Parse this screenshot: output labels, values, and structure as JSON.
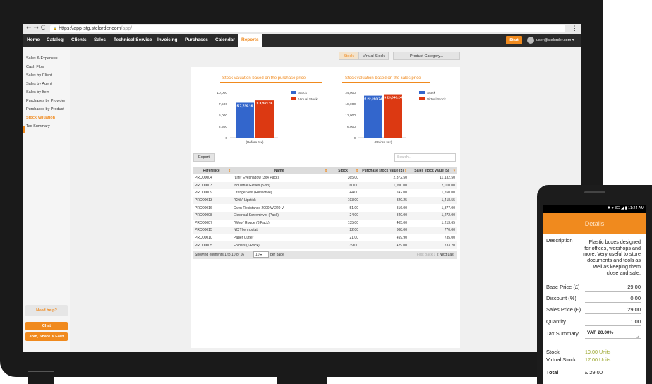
{
  "browser": {
    "nav_icons": "← → C",
    "url_secure": "🔒",
    "url_host": "https://app-stg.stelorder.com",
    "url_path": "/app/",
    "menu_icon": "⋮"
  },
  "topnav": {
    "tabs": [
      {
        "label": "Home"
      },
      {
        "label": "Catalog"
      },
      {
        "label": "Clients"
      },
      {
        "label": "Sales"
      },
      {
        "label": "Technical Service"
      },
      {
        "label": "Invoicing"
      },
      {
        "label": "Purchases"
      },
      {
        "label": "Calendar"
      },
      {
        "label": "Reports"
      }
    ],
    "active_tab": "Reports",
    "start_label": "Start",
    "user_label": "user@stelorder.com"
  },
  "sidebar": {
    "items": [
      {
        "label": "Sales & Expenses"
      },
      {
        "label": "Cash Flow"
      },
      {
        "label": "Sales by Client"
      },
      {
        "label": "Sales by Agent"
      },
      {
        "label": "Sales by Item"
      },
      {
        "label": "Purchases by Provider"
      },
      {
        "label": "Purchases by Product"
      },
      {
        "label": "Stock Valuation"
      },
      {
        "label": "Tax Summary"
      }
    ],
    "active_item": "Stock Valuation",
    "need_help": "Need help?",
    "chat_label": "Chat",
    "join_label": "Join, Share & Earn"
  },
  "toolbar": {
    "stock_label": "Stock",
    "virtual_stock_label": "Virtual Stock",
    "category_label": "Product Category..."
  },
  "charts": {
    "legend_stock": "Stock",
    "legend_virtual": "Virtual Stock"
  },
  "chart_data": [
    {
      "type": "bar",
      "title": "Stock valuation based on the purchase price",
      "categories": [
        "(Before tax)"
      ],
      "series": [
        {
          "name": "Stock",
          "values": [
            7739.16
          ],
          "label": "$ 7,739.16",
          "color": "#3366cc"
        },
        {
          "name": "Virtual Stock",
          "values": [
            8263.26
          ],
          "label": "$ 8,263.26",
          "color": "#dc3912"
        }
      ],
      "yticks": [
        "10,000",
        "7,500",
        "5,000",
        "2,500",
        "0"
      ],
      "ylim": [
        0,
        10000
      ],
      "legend": "right",
      "grid": false
    },
    {
      "type": "bar",
      "title": "Stock valuation based on the sales price",
      "categories": [
        "(Before tax)"
      ],
      "series": [
        {
          "name": "Stock",
          "values": [
            22280.74
          ],
          "label": "$ 22,280.74",
          "color": "#3366cc"
        },
        {
          "name": "Virtual Stock",
          "values": [
            23046.24
          ],
          "label": "$ 23,046.24",
          "color": "#dc3912"
        }
      ],
      "yticks": [
        "24,000",
        "18,000",
        "12,000",
        "6,000",
        "0"
      ],
      "ylim": [
        0,
        24000
      ],
      "legend": "right",
      "grid": false
    }
  ],
  "table": {
    "export_label": "Export",
    "search_placeholder": "Search...",
    "headers": {
      "reference": "Reference",
      "name": "Name",
      "stock": "Stock",
      "purchase": "Purchase stock value ($)",
      "sales": "Sales stock value ($)"
    },
    "rows": [
      {
        "ref": "PRO00004",
        "name": "\"Life\" Eyeshadow (3x4 Pack)",
        "stock": "365.00",
        "purchase": "2,372.50",
        "sales": "11,132.50"
      },
      {
        "ref": "PRO00003",
        "name": "Industrial Gloves (Skin)",
        "stock": "60.00",
        "purchase": "1,200.00",
        "sales": "2,010.00"
      },
      {
        "ref": "PRO00009",
        "name": "Orange Vest (Reflective)",
        "stock": "44.00",
        "purchase": "242.00",
        "sales": "1,760.00"
      },
      {
        "ref": "PRO00013",
        "name": "\"Chik\" Lipstick",
        "stock": "193.00",
        "purchase": "820.25",
        "sales": "1,418.55"
      },
      {
        "ref": "PRO00016",
        "name": "Oven Resistance 2000 W 220 V",
        "stock": "51.00",
        "purchase": "816.00",
        "sales": "1,377.00"
      },
      {
        "ref": "PRO00008",
        "name": "Electrical Screwdriver (Pack)",
        "stock": "24.00",
        "purchase": "840.00",
        "sales": "1,272.00"
      },
      {
        "ref": "PRO00007",
        "name": "\"Wow\" Rogue (3 Pack)",
        "stock": "135.00",
        "purchase": "405.00",
        "sales": "1,213.65"
      },
      {
        "ref": "PRO00015",
        "name": "NC Thermostat",
        "stock": "22.00",
        "purchase": "308.00",
        "sales": "770.00"
      },
      {
        "ref": "PRO00010",
        "name": "Paper Cutter",
        "stock": "21.00",
        "purchase": "459.90",
        "sales": "735.00"
      },
      {
        "ref": "PRO00005",
        "name": "Folders (6 Pack)",
        "stock": "39.00",
        "purchase": "429.00",
        "sales": "733.20"
      }
    ],
    "footer_info": "Showing elements 1 to 10 of 16",
    "per_page_value": "10",
    "per_page_label": "per page",
    "pager": {
      "first": "First",
      "back": "Back",
      "p1": "1",
      "p2": "2",
      "next": "Next",
      "last": "Last"
    }
  },
  "phone": {
    "status_right": "✱ ▾ 3G ◢ ▮ 11:24 AM",
    "header": "Details",
    "description_label": "Description",
    "description_value": "Plastic boxes designed for offices, worshops and more. Very useful to store documents and tools as well as keeping them close and safe.",
    "base_price_label": "Base Price (£)",
    "base_price_value": "29.00",
    "discount_label": "Discount (%)",
    "discount_value": "0.00",
    "sales_price_label": "Sales Price (£)",
    "sales_price_value": "29.00",
    "quantity_label": "Quantity",
    "quantity_value": "1.00",
    "tax_label": "Tax Summary",
    "tax_value": "VAT: 20.00%",
    "stock_label": "Stock",
    "stock_value": "19.00 Units",
    "virtual_stock_label": "Virtual Stock",
    "virtual_stock_value": "17.00 Units",
    "total_label": "Total",
    "total_value": "£ 29.00"
  }
}
